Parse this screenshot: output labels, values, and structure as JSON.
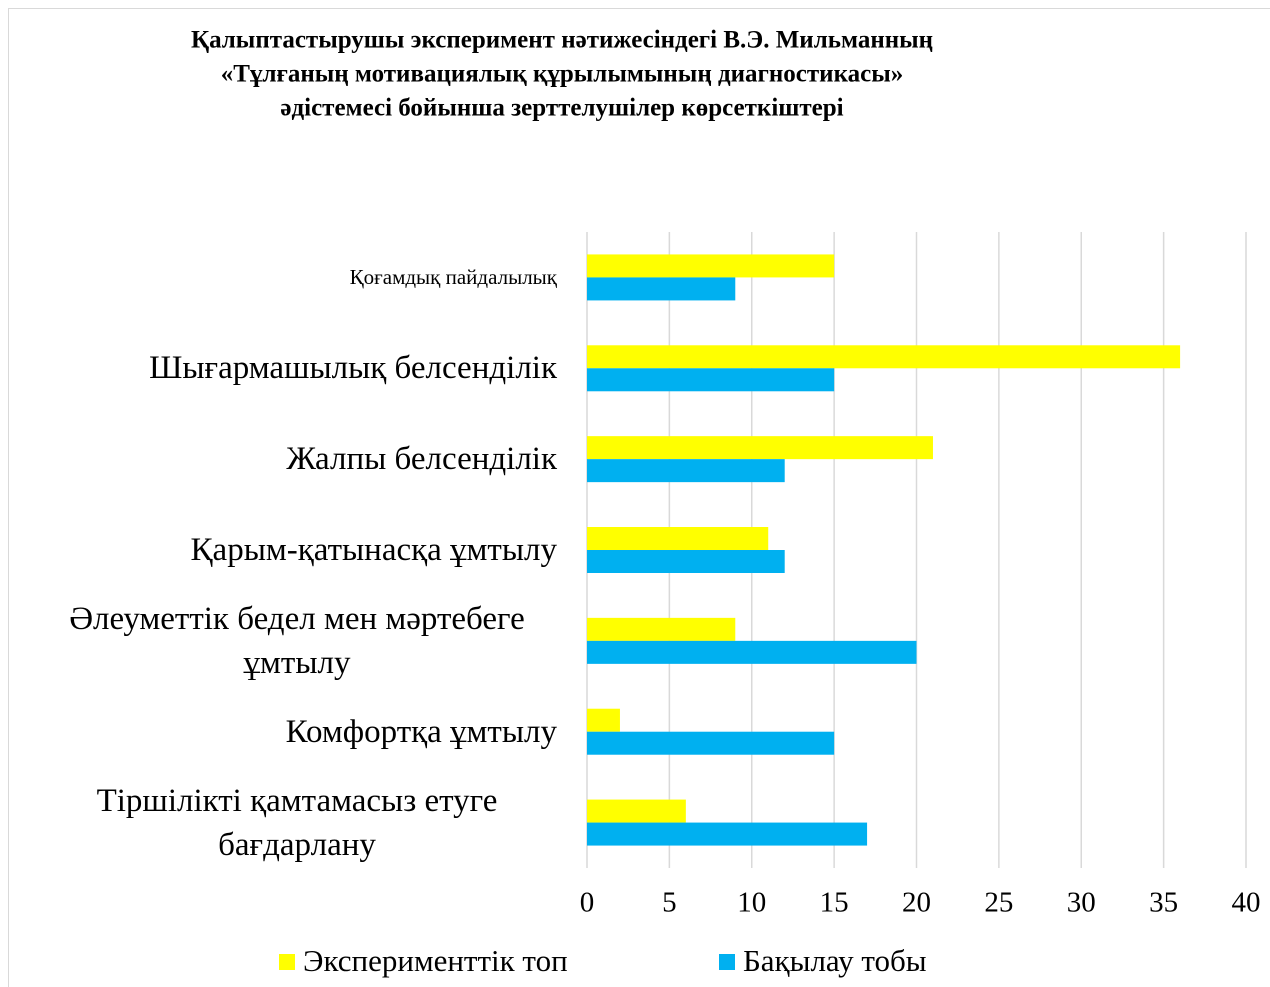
{
  "chart_data": {
    "type": "bar",
    "orientation": "horizontal",
    "title": [
      "Қалыптастырушы эксперимент нәтижесіндегі В.Э. Мильманның",
      "«Тұлғаның мотивациялық құрылымының диагностикасы»",
      "әдістемесі бойынша зерттелушілер көрсеткіштері"
    ],
    "categories": [
      "Қоғамдық пайдалылық",
      "Шығармашылық белсенділік",
      "Жалпы белсенділік",
      "Қарым-қатынасқа ұмтылу",
      "Әлеуметтік бедел мен мәртебеге ұмтылу",
      "Комфортқа ұмтылу",
      "Тіршілікті қамтамасыз етуге бағдарлану"
    ],
    "series": [
      {
        "name": "Эксперименттік топ",
        "color": "#ffff00",
        "values": [
          15,
          36,
          21,
          11,
          9,
          2,
          6
        ]
      },
      {
        "name": "Бақылау тобы",
        "color": "#00b0f0",
        "values": [
          9,
          15,
          12,
          12,
          20,
          15,
          17
        ]
      }
    ],
    "xlim": [
      0,
      40
    ],
    "xticks": [
      0,
      5,
      10,
      15,
      20,
      25,
      30,
      35,
      40
    ],
    "grid": true,
    "legend": "bottom"
  }
}
